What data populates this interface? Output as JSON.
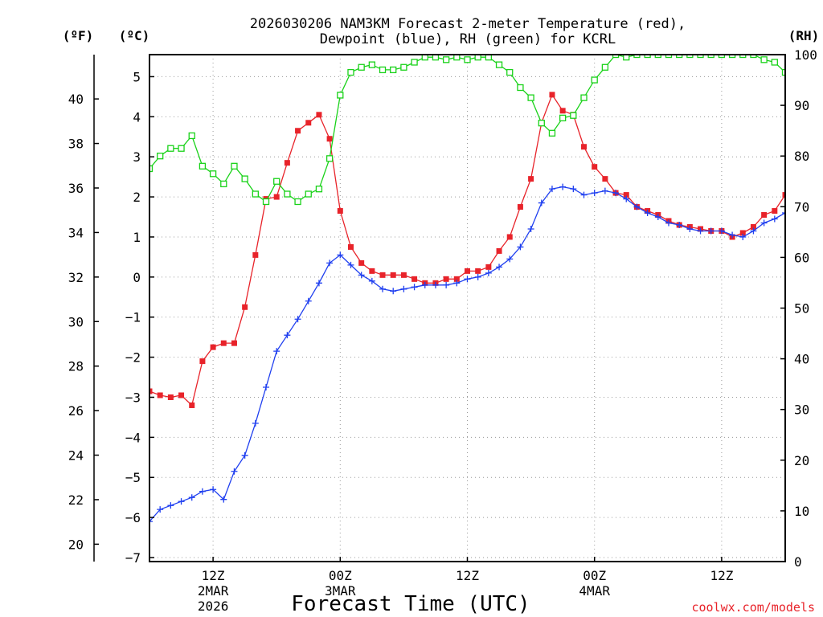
{
  "chart_data": {
    "type": "line",
    "title_line1": "2026030206 NAM3KM Forecast 2-meter Temperature (red),",
    "title_line2": "Dewpoint (blue), RH (green) for KCRL",
    "xlabel": "Forecast Time (UTC)",
    "credit": "coolwx.com/models",
    "units": {
      "fahrenheit": "(ºF)",
      "celsius": "(ºC)",
      "rh": "(RH)"
    },
    "x_range_hours": [
      6,
      66
    ],
    "celsius_range": [
      -7.1,
      5.55
    ],
    "rh_range": [
      0,
      100
    ],
    "x_ticks": [
      {
        "hour": 12,
        "label": "12Z",
        "day": "2MAR",
        "year": "2026"
      },
      {
        "hour": 24,
        "label": "00Z",
        "day": "3MAR",
        "year": ""
      },
      {
        "hour": 36,
        "label": "12Z",
        "day": "",
        "year": ""
      },
      {
        "hour": 48,
        "label": "00Z",
        "day": "4MAR",
        "year": ""
      },
      {
        "hour": 60,
        "label": "12Z",
        "day": "",
        "year": ""
      }
    ],
    "celsius_ticks": [
      "-7",
      "-6",
      "-5",
      "-4",
      "-3",
      "-2",
      "-1",
      "0",
      "1",
      "2",
      "3",
      "4",
      "5"
    ],
    "fahrenheit_ticks": [
      "20",
      "22",
      "24",
      "26",
      "28",
      "30",
      "32",
      "34",
      "36",
      "38",
      "40"
    ],
    "rh_ticks": [
      "0",
      "10",
      "20",
      "30",
      "40",
      "50",
      "60",
      "70",
      "80",
      "90",
      "100"
    ],
    "series": [
      {
        "name": "2-meter Temperature",
        "units": "C",
        "color": "#e8232a",
        "marker": "filled-square",
        "hours": [
          6,
          7,
          8,
          9,
          10,
          11,
          12,
          13,
          14,
          15,
          16,
          17,
          18,
          19,
          20,
          21,
          22,
          23,
          24,
          25,
          26,
          27,
          28,
          29,
          30,
          31,
          32,
          33,
          34,
          35,
          36,
          37,
          38,
          39,
          40,
          41,
          42,
          43,
          44,
          45,
          46,
          47,
          48,
          49,
          50,
          51,
          52,
          53,
          54,
          55,
          56,
          57,
          58,
          59,
          60,
          61,
          62,
          63,
          64,
          65,
          66
        ],
        "values": [
          -2.85,
          -2.95,
          -3.0,
          -2.95,
          -3.2,
          -2.1,
          -1.75,
          -1.65,
          -1.65,
          -0.75,
          0.55,
          1.95,
          2.0,
          2.85,
          3.65,
          3.85,
          4.05,
          3.45,
          1.65,
          0.75,
          0.35,
          0.15,
          0.05,
          0.05,
          0.05,
          -0.05,
          -0.15,
          -0.15,
          -0.05,
          -0.05,
          0.15,
          0.15,
          0.25,
          0.65,
          1.0,
          1.75,
          2.45,
          3.85,
          4.55,
          4.15,
          4.05,
          3.25,
          2.75,
          2.45,
          2.1,
          2.05,
          1.75,
          1.65,
          1.55,
          1.4,
          1.3,
          1.25,
          1.2,
          1.15,
          1.15,
          1.0,
          1.1,
          1.25,
          1.55,
          1.65,
          2.05
        ]
      },
      {
        "name": "Dewpoint",
        "units": "C",
        "color": "#1f3ff0",
        "marker": "plus",
        "hours": [
          6,
          7,
          8,
          9,
          10,
          11,
          12,
          13,
          14,
          15,
          16,
          17,
          18,
          19,
          20,
          21,
          22,
          23,
          24,
          25,
          26,
          27,
          28,
          29,
          30,
          31,
          32,
          33,
          34,
          35,
          36,
          37,
          38,
          39,
          40,
          41,
          42,
          43,
          44,
          45,
          46,
          47,
          48,
          49,
          50,
          51,
          52,
          53,
          54,
          55,
          56,
          57,
          58,
          59,
          60,
          61,
          62,
          63,
          64,
          65,
          66
        ],
        "values": [
          -6.1,
          -5.8,
          -5.7,
          -5.6,
          -5.5,
          -5.35,
          -5.3,
          -5.55,
          -4.85,
          -4.45,
          -3.65,
          -2.75,
          -1.85,
          -1.45,
          -1.05,
          -0.6,
          -0.15,
          0.35,
          0.55,
          0.3,
          0.05,
          -0.1,
          -0.3,
          -0.35,
          -0.3,
          -0.25,
          -0.2,
          -0.2,
          -0.2,
          -0.15,
          -0.05,
          0.0,
          0.1,
          0.25,
          0.45,
          0.75,
          1.2,
          1.85,
          2.2,
          2.25,
          2.2,
          2.05,
          2.1,
          2.15,
          2.1,
          1.95,
          1.75,
          1.6,
          1.5,
          1.35,
          1.3,
          1.2,
          1.15,
          1.15,
          1.15,
          1.05,
          1.0,
          1.15,
          1.35,
          1.45,
          1.6
        ]
      },
      {
        "name": "RH",
        "units": "%",
        "color": "#19d219",
        "marker": "open-square",
        "hours": [
          6,
          7,
          8,
          9,
          10,
          11,
          12,
          13,
          14,
          15,
          16,
          17,
          18,
          19,
          20,
          21,
          22,
          23,
          24,
          25,
          26,
          27,
          28,
          29,
          30,
          31,
          32,
          33,
          34,
          35,
          36,
          37,
          38,
          39,
          40,
          41,
          42,
          43,
          44,
          45,
          46,
          47,
          48,
          49,
          50,
          51,
          52,
          53,
          54,
          55,
          56,
          57,
          58,
          59,
          60,
          61,
          62,
          63,
          64,
          65,
          66
        ],
        "values": [
          77.5,
          80.0,
          81.5,
          81.5,
          84.0,
          78.0,
          76.5,
          74.5,
          78.0,
          75.5,
          72.5,
          71.0,
          75.0,
          72.5,
          71.0,
          72.5,
          73.5,
          79.5,
          92.0,
          96.5,
          97.5,
          98.0,
          97.0,
          97.0,
          97.5,
          98.5,
          99.5,
          99.5,
          99.0,
          99.5,
          99.0,
          99.5,
          99.5,
          98.0,
          96.5,
          93.5,
          91.5,
          86.5,
          84.5,
          87.5,
          88.0,
          91.5,
          95.0,
          97.5,
          100.0,
          99.5,
          100.0,
          100.0,
          100.0,
          100.0,
          100.0,
          100.0,
          100.0,
          100.0,
          100.0,
          100.0,
          100.0,
          100.0,
          99.0,
          98.5,
          96.5
        ]
      }
    ]
  }
}
